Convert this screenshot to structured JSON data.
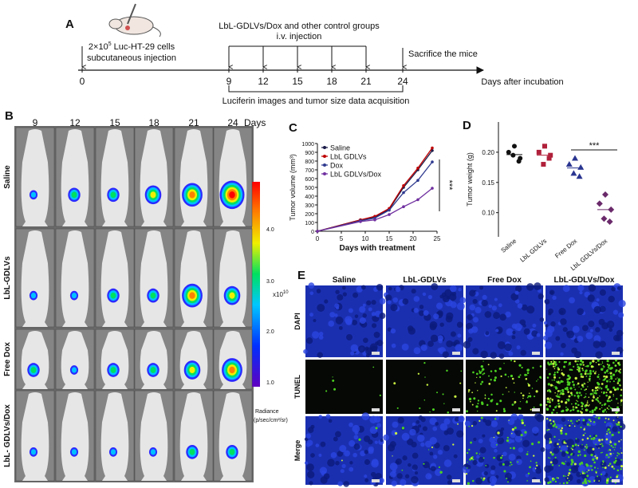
{
  "panel_a": {
    "label": "A",
    "injection": {
      "base": "2×10",
      "sup": "5",
      "rest": " Luc-HT-29  cells",
      "line2": "subcutaneous injection"
    },
    "treatment": {
      "line1": "LbL-GDLVs/Dox  and other control groups",
      "line2": "i.v. injection"
    },
    "sacrifice": "Sacrifice the mice",
    "days": [
      "0",
      "9",
      "12",
      "15",
      "18",
      "21",
      "24"
    ],
    "axis_label": "Days after incubation",
    "acquisition": "Luciferin images and tumor size data acquisition"
  },
  "panel_b": {
    "label": "B",
    "days": [
      "9",
      "12",
      "15",
      "18",
      "21",
      "24"
    ],
    "days_label": "Days",
    "rows": [
      "Saline",
      "LbL-GDLVs",
      "Free Dox",
      "LbL- GDLVs/Dox"
    ],
    "colorbar": {
      "ticks": [
        "4.0",
        "3.0",
        "2.0",
        "1.0"
      ],
      "scale": {
        "base": "x10",
        "sup": "10"
      },
      "title": "Radiance",
      "units": "(p/sec/cm²/sr)"
    }
  },
  "chart_data": [
    {
      "type": "line",
      "label": "C",
      "x": [
        0,
        9,
        12,
        15,
        18,
        21,
        24
      ],
      "xlim": [
        0,
        25
      ],
      "xticks": [
        0,
        5,
        10,
        15,
        20,
        25
      ],
      "ylim": [
        0,
        1000
      ],
      "yticks": [
        0,
        100,
        200,
        300,
        400,
        500,
        600,
        700,
        800,
        900,
        1000
      ],
      "xlabel": "Days with treatment",
      "ylabel": "Tumor volume (mm³)",
      "annotation": "***",
      "legend": "upper left",
      "series": [
        {
          "name": "Saline",
          "color": "#1c1c4a",
          "values": [
            0,
            130,
            160,
            250,
            500,
            700,
            920
          ]
        },
        {
          "name": "LbL GDLVs",
          "color": "#c00000",
          "values": [
            0,
            130,
            170,
            260,
            520,
            720,
            950
          ]
        },
        {
          "name": "Dox",
          "color": "#2f3a8f",
          "values": [
            0,
            120,
            150,
            240,
            440,
            580,
            790
          ]
        },
        {
          "name": "LbL GDLVs/Dox",
          "color": "#7030a0",
          "values": [
            0,
            110,
            130,
            190,
            280,
            360,
            490
          ]
        }
      ]
    },
    {
      "type": "dot",
      "label": "D",
      "categories": [
        "Saline",
        "LbL GDLVs",
        "Free Dox",
        "LbL GDLVs/Dox"
      ],
      "colors": [
        "#111111",
        "#b0203a",
        "#2a3590",
        "#6a2a6a"
      ],
      "markers": [
        "circle",
        "square",
        "triangle",
        "diamond"
      ],
      "values": [
        [
          0.21,
          0.2,
          0.19,
          0.195,
          0.185
        ],
        [
          0.21,
          0.2,
          0.195,
          0.18,
          0.19
        ],
        [
          0.19,
          0.18,
          0.175,
          0.165,
          0.16
        ],
        [
          0.13,
          0.115,
          0.105,
          0.09,
          0.085
        ]
      ],
      "ylim": [
        0.06,
        0.25
      ],
      "yticks": [
        {
          "value": 0.1,
          "label": "0.10"
        },
        0.15,
        {
          "value": 0.2,
          "label": "0.20"
        }
      ],
      "ylabel": "Tumor weight (g)",
      "annotation": "***"
    }
  ],
  "panel_e": {
    "label": "E",
    "columns": [
      "Saline",
      "LbL-GDLVs",
      "Free Dox",
      "LbL-GDLVs/Dox"
    ],
    "rows": [
      "DAPI",
      "TUNEL",
      "Merge"
    ]
  }
}
